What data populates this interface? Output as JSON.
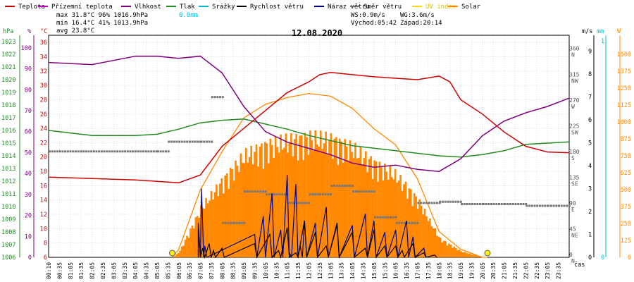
{
  "chart_data": {
    "type": "line",
    "title": "12.08.2020",
    "legend": [
      {
        "name": "Teplota",
        "color": "#cc0000"
      },
      {
        "name": "Přízemní teplota",
        "color": "#cc00cc"
      },
      {
        "name": "Vlhkost",
        "color": "#800080"
      },
      {
        "name": "Tlak",
        "color": "#228b22"
      },
      {
        "name": "Srážky",
        "color": "#00bcd4"
      },
      {
        "name": "Rychlost větru",
        "color": "#000000"
      },
      {
        "name": "Náraz větru",
        "color": "#00008b"
      },
      {
        "name": "Směr větru",
        "color": "#777777"
      },
      {
        "name": "UV index",
        "color": "#ffd700"
      },
      {
        "name": "Solar",
        "color": "#ff8800"
      }
    ],
    "stats": {
      "max": {
        "label": "max",
        "temp": "31.8°C",
        "hum": "96%",
        "press": "1016.9hPa",
        "rain": "0.0mm"
      },
      "min": {
        "label": "min",
        "temp": "16.4°C",
        "hum": "41%",
        "press": "1013.9hPa"
      },
      "avg": {
        "label": "avg",
        "temp": "23.8°C"
      },
      "ws": "WS:0.9m/s",
      "wg": "WG:3.6m/s",
      "sunrise": "Východ:05:42",
      "sunset": "Západ:20:14"
    },
    "axes": {
      "hpa": {
        "label": "hPa",
        "ticks": [
          1006,
          1007,
          1008,
          1009,
          1010,
          1011,
          1012,
          1013,
          1014,
          1015,
          1016,
          1017,
          1018,
          1019,
          1020,
          1021,
          1022,
          1023
        ]
      },
      "pct": {
        "label": "%",
        "ticks": [
          0,
          10,
          20,
          30,
          40,
          50,
          60,
          70,
          80,
          90,
          100
        ]
      },
      "temp": {
        "label": "°C",
        "ticks": [
          6,
          8,
          10,
          12,
          14,
          16,
          18,
          20,
          22,
          24,
          26,
          28,
          30,
          32,
          34,
          36
        ]
      },
      "dir": {
        "ticks": [
          "0 N",
          "45 NE",
          "90 E",
          "135 SE",
          "180 S",
          "225 SW",
          "270 W",
          "315 NW",
          "360 N"
        ]
      },
      "ms": {
        "label": "m/s",
        "ticks": [
          0,
          1,
          2,
          3,
          4,
          5,
          6,
          7,
          8,
          9
        ]
      },
      "mm": {
        "label": "mm",
        "ticks": [
          0,
          1
        ]
      },
      "solar": {
        "label": "W",
        "ticks": [
          0,
          125,
          250,
          375,
          500,
          625,
          750,
          875,
          1000,
          1125,
          1250,
          1375,
          1500
        ]
      },
      "x_label": "čas",
      "x_ticks": [
        "00:10",
        "00:35",
        "01:05",
        "01:35",
        "02:05",
        "02:35",
        "03:05",
        "03:35",
        "04:05",
        "04:35",
        "05:05",
        "05:35",
        "06:05",
        "06:35",
        "07:05",
        "07:35",
        "08:05",
        "08:35",
        "09:05",
        "09:35",
        "10:05",
        "10:35",
        "11:05",
        "11:35",
        "12:05",
        "12:35",
        "13:05",
        "13:35",
        "14:05",
        "14:35",
        "15:05",
        "15:35",
        "16:05",
        "16:35",
        "17:05",
        "17:35",
        "18:05",
        "18:35",
        "19:05",
        "19:35",
        "20:05",
        "20:35",
        "21:05",
        "21:35",
        "22:05",
        "22:35",
        "23:05",
        "23:35"
      ]
    },
    "series": [
      {
        "name": "Teplota",
        "unit": "°C",
        "x": [
          0,
          2,
          4,
          5,
          6,
          7,
          8,
          9,
          10,
          11,
          12,
          12.5,
          13,
          14,
          15,
          16,
          17,
          18,
          18.5,
          19,
          20,
          21,
          22,
          23,
          24
        ],
        "y": [
          17.2,
          17.0,
          16.8,
          16.6,
          16.4,
          17.5,
          21.5,
          24,
          26.5,
          29,
          30.5,
          31.5,
          31.8,
          31.5,
          31.2,
          31,
          30.8,
          31.3,
          30.5,
          28,
          26,
          23.5,
          21.5,
          20.7,
          20.6
        ]
      },
      {
        "name": "Vlhkost",
        "unit": "%",
        "x": [
          0,
          2,
          4,
          5,
          6,
          7,
          8,
          9,
          10,
          11,
          12,
          13,
          14,
          15,
          16,
          17,
          18,
          19,
          20,
          21,
          22,
          23,
          24
        ],
        "y": [
          93,
          92,
          96,
          96,
          95,
          96,
          88,
          72,
          60,
          55,
          52,
          49,
          45,
          43,
          44,
          42,
          41,
          47,
          58,
          65,
          69,
          72,
          76
        ]
      },
      {
        "name": "Tlak",
        "unit": "hPa",
        "x": [
          0,
          2,
          4,
          5,
          6,
          7,
          8,
          9,
          10,
          11,
          12,
          13,
          14,
          15,
          16,
          17,
          18,
          19,
          20,
          21,
          22,
          23,
          24
        ],
        "y": [
          1016.0,
          1015.6,
          1015.6,
          1015.7,
          1016.1,
          1016.6,
          1016.8,
          1016.9,
          1016.5,
          1016.1,
          1015.6,
          1015.2,
          1014.8,
          1014.6,
          1014.4,
          1014.2,
          1014.0,
          1013.9,
          1014.1,
          1014.4,
          1014.9,
          1015.0,
          1015.1
        ]
      },
      {
        "name": "Směr větru",
        "unit": "deg",
        "x": [
          0,
          5,
          5.5,
          7,
          7.5,
          8,
          8.5,
          9,
          10,
          11,
          12,
          13,
          14,
          15,
          16,
          17,
          17.5,
          18,
          19,
          20,
          21,
          22,
          23,
          24
        ],
        "y": [
          185,
          185,
          202,
          202,
          280,
          60,
          60,
          115,
          110,
          95,
          110,
          125,
          115,
          70,
          60,
          95,
          95,
          97,
          93,
          93,
          93,
          90,
          90,
          90
        ]
      },
      {
        "name": "Rychlost větru",
        "unit": "m/s",
        "x": [
          6.9,
          7.1,
          7.4,
          7.6,
          8.0,
          9.5,
          10.2,
          10.6,
          11.0,
          11.4,
          11.8,
          12.3,
          12.8,
          13.3,
          14.0,
          14.6,
          15.0,
          15.5,
          16.0,
          16.3,
          16.8,
          17.3,
          17.8
        ],
        "y": [
          1.2,
          0.4,
          0.6,
          0.3,
          0.4,
          0.6,
          1.0,
          0.3,
          1.3,
          0.2,
          1.6,
          1.1,
          0.5,
          1.5,
          1.1,
          0.4,
          1.2,
          0.5,
          0.5,
          0.3,
          0.6,
          0.2,
          0.1
        ]
      },
      {
        "name": "Náraz větru",
        "unit": "m/s",
        "x": [
          6.9,
          7.05,
          7.2,
          9.5,
          9.9,
          10.3,
          10.7,
          11.0,
          11.1,
          11.4,
          11.6,
          11.8,
          12.3,
          12.8,
          13.3,
          14.0,
          14.6,
          15.0,
          15.5,
          16.0,
          16.5,
          16.8,
          17.3
        ],
        "y": [
          1.5,
          3.0,
          0.5,
          1.0,
          1.8,
          2.8,
          1.2,
          3.6,
          0.2,
          3.2,
          0.5,
          1.6,
          1.5,
          2.2,
          1.4,
          1.4,
          1.9,
          1.6,
          1.1,
          1.2,
          1.6,
          0.9,
          0.4
        ]
      },
      {
        "name": "Solar",
        "unit": "W",
        "x": [
          5.7,
          6,
          7,
          8,
          9,
          10,
          11,
          12,
          13,
          14,
          15,
          16,
          17,
          18,
          19,
          20,
          20.23
        ],
        "y": [
          0,
          60,
          500,
          780,
          1030,
          1130,
          1180,
          1210,
          1190,
          1100,
          950,
          830,
          580,
          190,
          60,
          0,
          0
        ]
      }
    ],
    "sun_markers": [
      "05:42",
      "20:14"
    ]
  }
}
